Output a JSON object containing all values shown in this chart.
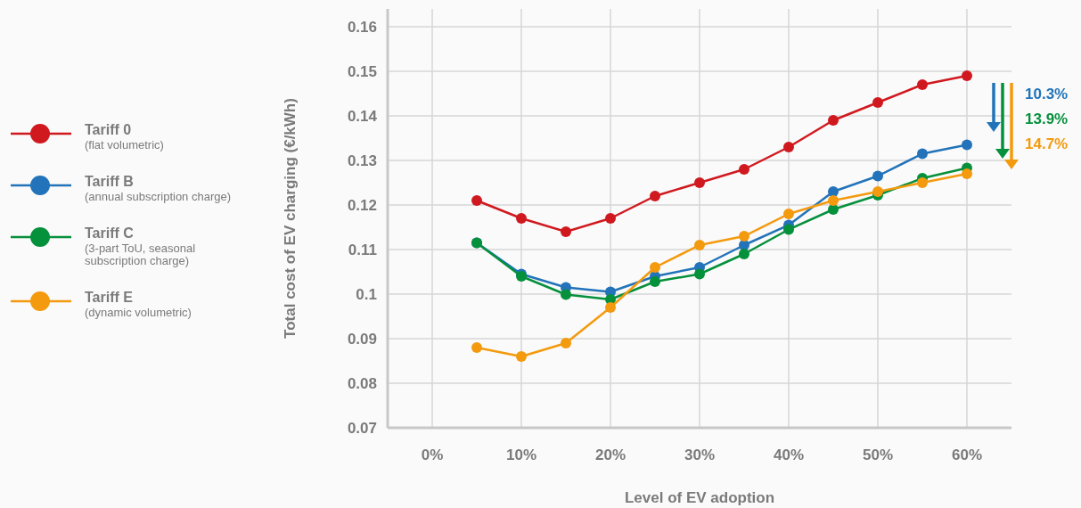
{
  "chart_data": {
    "type": "line",
    "xlabel": "Level of EV adoption",
    "ylabel": "Total cost of EV charging (€/kWh)",
    "x": [
      5,
      10,
      15,
      20,
      25,
      30,
      35,
      40,
      45,
      50,
      55,
      60
    ],
    "series": [
      {
        "name": "Tariff 0 (flat volumetric)",
        "color": "#d0191f",
        "values": [
          0.121,
          0.117,
          0.114,
          0.117,
          0.122,
          0.125,
          0.128,
          0.133,
          0.139,
          0.143,
          0.147,
          0.149
        ]
      },
      {
        "name": "Tariff B (annual subscription charge)",
        "color": "#2273b9",
        "values": [
          0.1115,
          0.1045,
          0.1015,
          0.1005,
          0.104,
          0.106,
          0.111,
          0.1155,
          0.123,
          0.1265,
          0.1315,
          0.1335
        ]
      },
      {
        "name": "Tariff C (3-part ToU, seasonal subscription charge)",
        "color": "#05903c",
        "values": [
          0.1115,
          0.104,
          0.0999,
          0.0988,
          0.1028,
          0.1045,
          0.109,
          0.1145,
          0.119,
          0.1222,
          0.126,
          0.1283
        ]
      },
      {
        "name": "Tariff E (dynamic volumetric)",
        "color": "#f39a0e",
        "values": [
          0.088,
          0.086,
          0.089,
          0.097,
          0.106,
          0.111,
          0.113,
          0.118,
          0.121,
          0.123,
          0.125,
          0.127
        ]
      }
    ],
    "annotations": [
      "10.3%",
      "13.9%",
      "14.7%"
    ],
    "xlim": [
      -5,
      65
    ],
    "xticks": [
      {
        "value": 0,
        "label": "0%"
      },
      {
        "value": 10,
        "label": "10%"
      },
      {
        "value": 20,
        "label": "20%"
      },
      {
        "value": 30,
        "label": "30%"
      },
      {
        "value": 40,
        "label": "40%"
      },
      {
        "value": 50,
        "label": "50%"
      },
      {
        "value": 60,
        "label": "60%"
      }
    ],
    "ylim": [
      0.07,
      0.164
    ],
    "yticks": [
      0.07,
      0.08,
      0.09,
      0.1,
      0.11,
      0.12,
      0.13,
      0.14,
      0.15,
      0.16
    ],
    "grid": true,
    "legend": "left",
    "marker": "circle",
    "line_style": "solid"
  }
}
